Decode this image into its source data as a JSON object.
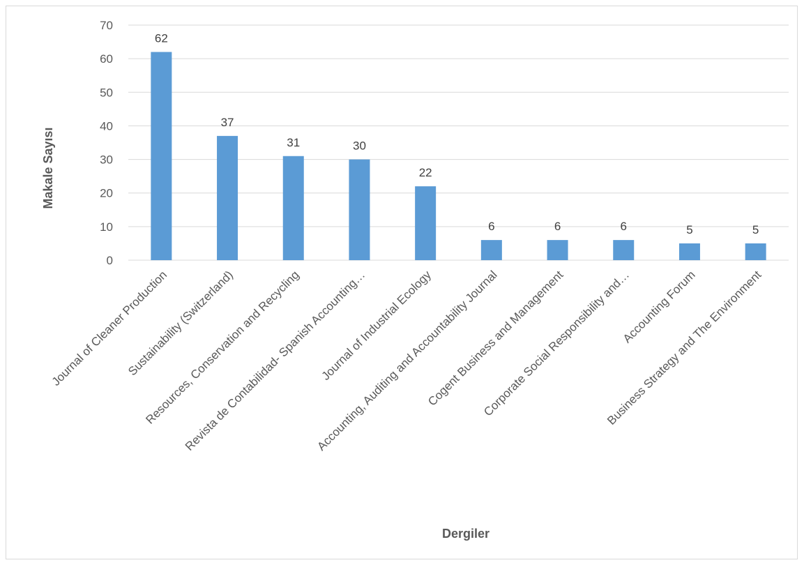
{
  "chart_data": {
    "type": "bar",
    "categories": [
      "Journal of Cleaner Production",
      "Sustainability (Switzerland)",
      "Resources, Conservation and Recycling",
      "Revista de Contabilidad- Spanish Accounting…",
      "Journal of Industrial Ecology",
      "Accounting, Auditing and Accountability Journal",
      "Cogent Business and Management",
      "Corporate Social Responsibility and…",
      "Accounting Forum",
      "Business Strategy and The Environment"
    ],
    "values": [
      62,
      37,
      31,
      30,
      22,
      6,
      6,
      6,
      5,
      5
    ],
    "title": "",
    "xlabel": "Dergiler",
    "ylabel": "Makale Sayısı",
    "ylim": [
      0,
      70
    ],
    "yticks": [
      0,
      10,
      20,
      30,
      40,
      50,
      60,
      70
    ],
    "grid": true,
    "legend": "none",
    "bar_color": "#5b9bd5",
    "grid_color": "#d9d9d9"
  }
}
